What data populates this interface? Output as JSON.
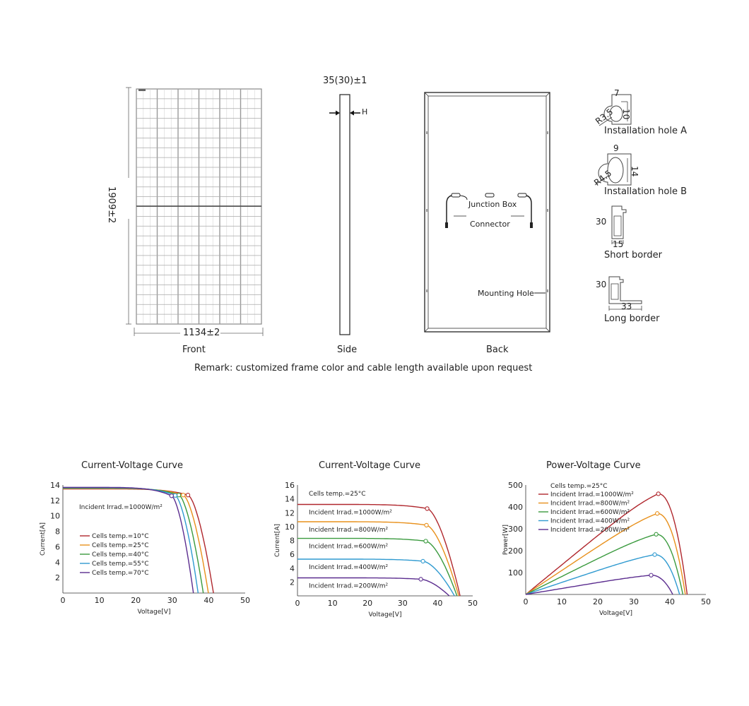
{
  "drawing": {
    "dim_height": "1909±2",
    "dim_width": "1134±2",
    "dim_thickness": "35(30)±1",
    "h_marker": "H",
    "front_label": "Front",
    "side_label": "Side",
    "back_label": "Back",
    "junction_box": "Junction Box",
    "connector": "Connector",
    "mounting_hole": "Mounting Hole",
    "hole_a": {
      "label": "Installation hole A",
      "w": "7",
      "h": "10",
      "r": "R3.5"
    },
    "hole_b": {
      "label": "Installation hole B",
      "w": "9",
      "h": "14",
      "r": "R4.5"
    },
    "short_border": {
      "label": "Short border",
      "h": "30",
      "w": "15"
    },
    "long_border": {
      "label": "Long border",
      "h": "30",
      "w": "33"
    },
    "remark": "Remark: customized frame color and cable length available upon request"
  },
  "chart_data": [
    {
      "type": "line",
      "title": "Current-Voltage Curve",
      "xlabel": "Voltage[V]",
      "ylabel": "Current[A]",
      "xlim": [
        0,
        50
      ],
      "ylim": [
        0,
        14
      ],
      "xticks": [
        0,
        10,
        20,
        30,
        40,
        50
      ],
      "yticks": [
        2,
        4,
        6,
        8,
        10,
        12,
        14
      ],
      "annotation": "Incident Irrad.=1000W/m²",
      "legend": "left",
      "series": [
        {
          "name": "Cells temp.=10°C",
          "color": "#b0272d",
          "isc": 13.5,
          "voc": 41.3,
          "mpp": [
            34.3,
            12.7
          ]
        },
        {
          "name": "Cells temp.=25°C",
          "color": "#e8901b",
          "isc": 13.55,
          "voc": 39.9,
          "mpp": [
            33.0,
            12.7
          ]
        },
        {
          "name": "Cells temp.=40°C",
          "color": "#3a9a3e",
          "isc": 13.6,
          "voc": 38.5,
          "mpp": [
            31.8,
            12.7
          ]
        },
        {
          "name": "Cells temp.=55°C",
          "color": "#2f9ad0",
          "isc": 13.65,
          "voc": 37.1,
          "mpp": [
            30.8,
            12.65
          ]
        },
        {
          "name": "Cells temp.=70°C",
          "color": "#5b2d8f",
          "isc": 13.7,
          "voc": 35.8,
          "mpp": [
            29.8,
            12.6
          ]
        }
      ]
    },
    {
      "type": "line",
      "title": "Current-Voltage Curve",
      "xlabel": "Voltage[V]",
      "ylabel": "Current[A]",
      "xlim": [
        0,
        50
      ],
      "ylim": [
        0,
        16
      ],
      "xticks": [
        0,
        10,
        20,
        30,
        40,
        50
      ],
      "yticks": [
        2,
        4,
        6,
        8,
        10,
        12,
        14,
        16
      ],
      "annotation": "Cells temp.=25°C",
      "legend": "inline",
      "series": [
        {
          "name": "Incident Irrad.=1000W/m²",
          "color": "#b0272d",
          "isc": 13.2,
          "voc": 46.4,
          "mpp": [
            37.0,
            12.6
          ]
        },
        {
          "name": "Incident Irrad.=800W/m²",
          "color": "#e8901b",
          "isc": 10.7,
          "voc": 46.0,
          "mpp": [
            36.8,
            10.2
          ]
        },
        {
          "name": "Incident Irrad.=600W/m²",
          "color": "#3a9a3e",
          "isc": 8.3,
          "voc": 45.5,
          "mpp": [
            36.6,
            7.9
          ]
        },
        {
          "name": "Incident Irrad.=400W/m²",
          "color": "#2f9ad0",
          "isc": 5.3,
          "voc": 44.8,
          "mpp": [
            35.8,
            5.0
          ]
        },
        {
          "name": "Incident Irrad.=200W/m²",
          "color": "#5b2d8f",
          "isc": 2.6,
          "voc": 43.3,
          "mpp": [
            35.2,
            2.4
          ]
        }
      ]
    },
    {
      "type": "line",
      "title": "Power-Voltage Curve",
      "xlabel": "Voltage[V]",
      "ylabel": "Power[W]",
      "xlim": [
        0,
        50
      ],
      "ylim": [
        0,
        500
      ],
      "xticks": [
        0,
        10,
        20,
        30,
        40,
        50
      ],
      "yticks": [
        100,
        200,
        300,
        400,
        500
      ],
      "annotation": "Cells temp.=25°C",
      "legend": "top-left",
      "series": [
        {
          "name": "Incident Irrad.=1000W/m²",
          "color": "#b0272d",
          "voc": 44.8,
          "mpp": [
            36.8,
            460
          ]
        },
        {
          "name": "Incident Irrad.=800W/m²",
          "color": "#e8901b",
          "voc": 44.3,
          "mpp": [
            36.5,
            370
          ]
        },
        {
          "name": "Incident Irrad.=600W/m²",
          "color": "#3a9a3e",
          "voc": 43.6,
          "mpp": [
            36.2,
            275
          ]
        },
        {
          "name": "Incident Irrad.=400W/m²",
          "color": "#2f9ad0",
          "voc": 42.7,
          "mpp": [
            35.8,
            182
          ]
        },
        {
          "name": "Incident Irrad.=200W/m²",
          "color": "#5b2d8f",
          "voc": 40.8,
          "mpp": [
            34.8,
            88
          ]
        }
      ]
    }
  ]
}
